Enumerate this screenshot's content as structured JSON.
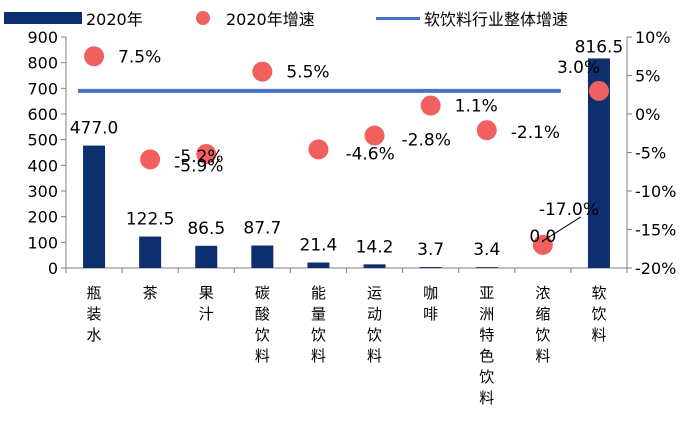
{
  "legend": {
    "bar_label": "2020年",
    "dot_label": "2020年增速",
    "line_label": "软饮料行业整体增速"
  },
  "colors": {
    "bar": "#0d2f6e",
    "dot": "#f25f5f",
    "line": "#4472c4"
  },
  "chart_data": {
    "type": "bar",
    "categories": [
      "瓶装水",
      "茶",
      "果汁",
      "碳酸饮料",
      "能量饮料",
      "运动饮料",
      "咖啡",
      "亚洲特色饮料",
      "浓缩饮料",
      "软饮料"
    ],
    "series": [
      {
        "name": "2020年",
        "type": "bar",
        "axis": "left",
        "values": [
          477.0,
          122.5,
          86.5,
          87.7,
          21.4,
          14.2,
          3.7,
          3.4,
          0.0,
          816.5
        ],
        "labels": [
          "477.0",
          "122.5",
          "86.5",
          "87.7",
          "21.4",
          "14.2",
          "3.7",
          "3.4",
          "0.0",
          "816.5"
        ]
      },
      {
        "name": "2020年增速",
        "type": "scatter",
        "axis": "right",
        "values": [
          7.5,
          -5.9,
          -5.2,
          5.5,
          -4.6,
          -2.8,
          1.1,
          -2.1,
          -17.0,
          3.0
        ],
        "labels": [
          "7.5%",
          "-5.9%",
          "-5.2%",
          "5.5%",
          "-4.6%",
          "-2.8%",
          "1.1%",
          "-2.1%",
          "-17.0%",
          "3.0%"
        ]
      },
      {
        "name": "软饮料行业整体增速",
        "type": "line",
        "axis": "right",
        "value": 3.0
      }
    ],
    "ylim_left": [
      0,
      900
    ],
    "yticks_left": [
      "0",
      "100",
      "200",
      "300",
      "400",
      "500",
      "600",
      "700",
      "800",
      "900"
    ],
    "ylim_right": [
      -20,
      10
    ],
    "yticks_right": [
      "-20%",
      "-15%",
      "-10%",
      "-5%",
      "0%",
      "5%",
      "10%"
    ],
    "legend_position": "top",
    "grid": false
  }
}
